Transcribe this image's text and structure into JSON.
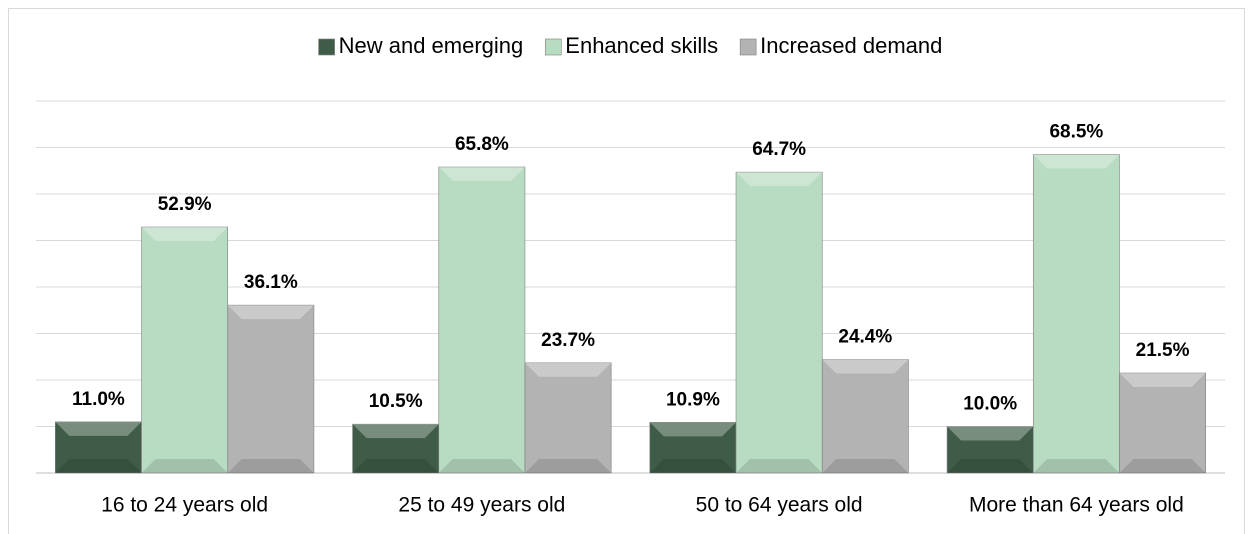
{
  "chart_data": {
    "type": "bar",
    "categories": [
      "16 to 24 years old",
      "25 to 49 years old",
      "50 to 64 years old",
      "More than 64 years old"
    ],
    "series": [
      {
        "name": "New and emerging",
        "color": "#3e5c47",
        "values": [
          11.0,
          10.5,
          10.9,
          10.0
        ],
        "value_labels": [
          "11.0%",
          "10.5%",
          "10.9%",
          "10.0%"
        ]
      },
      {
        "name": "Enhanced skills",
        "color": "#b8dcc2",
        "values": [
          52.9,
          65.8,
          64.7,
          68.5
        ],
        "value_labels": [
          "52.9%",
          "65.8%",
          "64.7%",
          "68.5%"
        ]
      },
      {
        "name": "Increased demand",
        "color": "#b3b3b3",
        "values": [
          36.1,
          23.7,
          24.4,
          21.5
        ],
        "value_labels": [
          "36.1%",
          "23.7%",
          "24.4%",
          "21.5%"
        ]
      }
    ],
    "ylim": [
      0,
      80
    ],
    "yticks": [
      0,
      10,
      20,
      30,
      40,
      50,
      60,
      70,
      80
    ],
    "grid": true,
    "legend": "top"
  }
}
